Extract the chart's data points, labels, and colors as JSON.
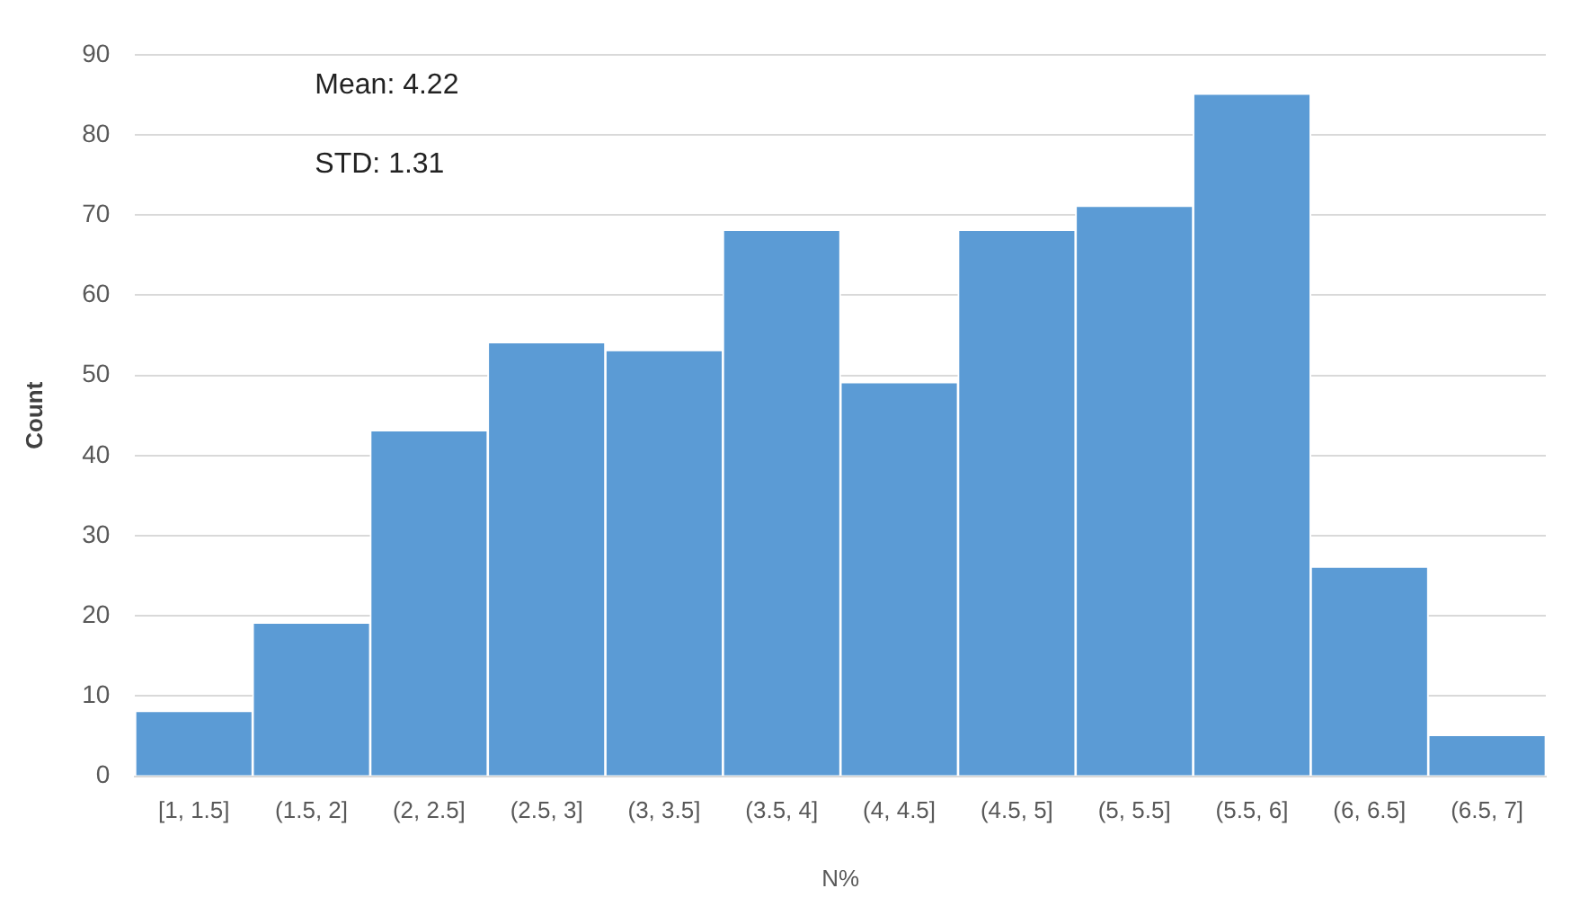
{
  "chart_data": {
    "type": "bar",
    "xlabel": "N%",
    "ylabel": "Count",
    "categories": [
      "[1, 1.5]",
      "(1.5, 2]",
      "(2, 2.5]",
      "(2.5, 3]",
      "(3, 3.5]",
      "(3.5, 4]",
      "(4, 4.5]",
      "(4.5, 5]",
      "(5, 5.5]",
      "(5.5, 6]",
      "(6, 6.5]",
      "(6.5, 7]"
    ],
    "values": [
      8,
      19,
      43,
      54,
      53,
      68,
      49,
      68,
      71,
      85,
      26,
      5
    ],
    "color": "#5b9bd5",
    "ylim": [
      0,
      90
    ],
    "yticks": [
      0,
      10,
      20,
      30,
      40,
      50,
      60,
      70,
      80,
      90
    ],
    "grid": "y",
    "annotations": [
      "Mean: 4.22",
      "STD: 1.31"
    ]
  }
}
